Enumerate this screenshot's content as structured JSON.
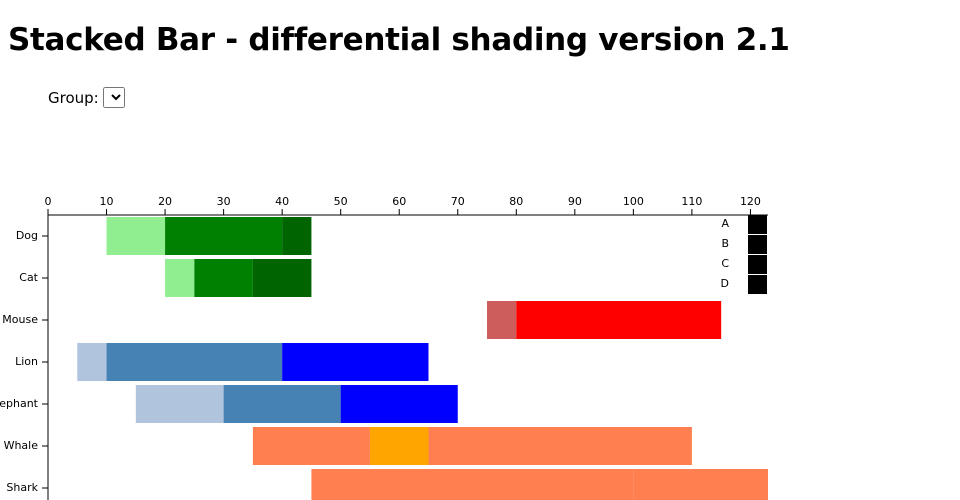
{
  "header": {
    "title": "Stacked Bar - differential shading version 2.1"
  },
  "controls": {
    "group_label": "Group:"
  },
  "chart_data": {
    "type": "stacked-bar",
    "orientation": "horizontal",
    "categories": [
      "Dog",
      "Cat",
      "Mouse",
      "Lion",
      "Elephant",
      "Whale",
      "Shark"
    ],
    "series": [
      {
        "name": "A",
        "color": "#000000",
        "hidden": true,
        "values": [
          10,
          20,
          75,
          5,
          15,
          35,
          45
        ]
      },
      {
        "name": "B",
        "color": "#000000",
        "values": [
          10,
          5,
          5,
          5,
          15,
          20,
          55
        ]
      },
      {
        "name": "C",
        "color": "#000000",
        "values": [
          20,
          10,
          35,
          30,
          20,
          10,
          23
        ]
      },
      {
        "name": "D",
        "color": "#000000",
        "values": [
          5,
          10,
          0,
          25,
          20,
          45,
          0
        ]
      }
    ],
    "bar_colors": [
      [
        null,
        "#90ee90",
        "#008000",
        "#006400"
      ],
      [
        null,
        "#90ee90",
        "#008000",
        "#006400"
      ],
      [
        null,
        "#cd5c5c",
        "#ff0000",
        "#ff0000"
      ],
      [
        null,
        "#b0c4de",
        "#4682b4",
        "#0000ff"
      ],
      [
        null,
        "#b0c4de",
        "#4682b4",
        "#0000ff"
      ],
      [
        null,
        "#ff7f50",
        "#ffa500",
        "#ff7f50"
      ],
      [
        null,
        "#ff7f50",
        "#ff7f50",
        "#ff7f50"
      ]
    ],
    "xlim": [
      0,
      123
    ],
    "xticks": [
      0,
      10,
      20,
      30,
      40,
      50,
      60,
      70,
      80,
      90,
      100,
      110,
      120
    ],
    "legend": "top-right"
  }
}
